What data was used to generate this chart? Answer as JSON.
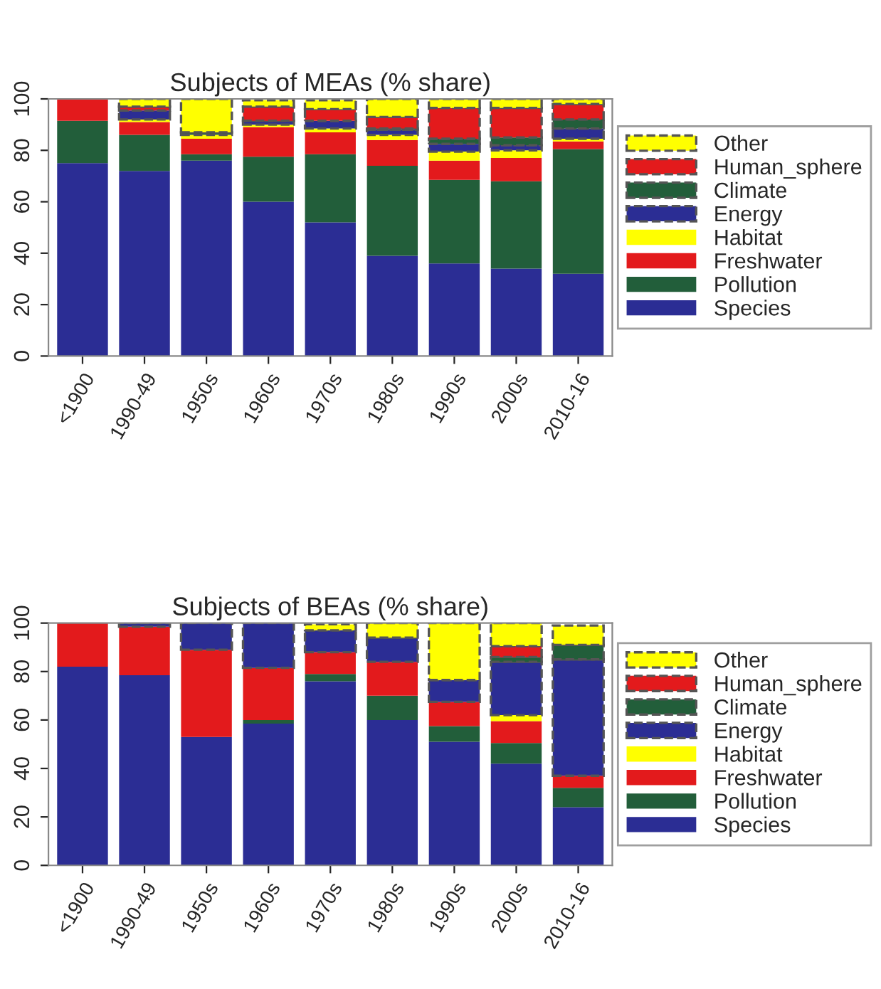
{
  "chart_data": [
    {
      "type": "bar",
      "title": "Subjects of MEAs (% share)",
      "stacked": true,
      "legend": "right",
      "grid": false,
      "categories": [
        "<1900",
        "1990-49",
        "1950s",
        "1960s",
        "1970s",
        "1980s",
        "1990s",
        "2000s",
        "2010-16"
      ],
      "ylim": [
        0,
        100
      ],
      "yticks": [
        0,
        20,
        40,
        60,
        80,
        100
      ],
      "series": [
        {
          "name": "Species",
          "color": "#2b2d94",
          "values": [
            75,
            72,
            76,
            60,
            52,
            39,
            36,
            34,
            32
          ]
        },
        {
          "name": "Pollution",
          "color": "#225e3a",
          "values": [
            16.5,
            14,
            2.5,
            17.5,
            26.5,
            35,
            32.5,
            34,
            48.5
          ]
        },
        {
          "name": "Freshwater",
          "color": "#e31a1c",
          "values": [
            8.5,
            5,
            6,
            11.5,
            8.5,
            10,
            7.5,
            9,
            3
          ]
        },
        {
          "name": "Habitat",
          "color": "#ffff00",
          "values": [
            0,
            1,
            1.5,
            1,
            1.5,
            2,
            3.5,
            3,
            1
          ]
        },
        {
          "name": "Energy",
          "color": "#2b2d94",
          "line_style": "dashed",
          "values": [
            0,
            3.5,
            0,
            1.5,
            3,
            2,
            3,
            2,
            4
          ]
        },
        {
          "name": "Climate",
          "color": "#225e3a",
          "line_style": "dashed",
          "values": [
            0,
            0,
            1,
            null,
            null,
            0.5,
            2,
            3,
            3.5
          ]
        },
        {
          "name": "Human_sphere",
          "color": "#e31a1c",
          "line_style": "dashed",
          "values": [
            0,
            1.5,
            0,
            5.5,
            4.5,
            4.5,
            12,
            11.5,
            6
          ]
        },
        {
          "name": "Other",
          "color": "#ffff00",
          "line_style": "dashed",
          "values": [
            0,
            3,
            13,
            2.5,
            3.5,
            7,
            3.5,
            3.5,
            2
          ]
        }
      ]
    },
    {
      "type": "bar",
      "title": "Subjects of BEAs (% share)",
      "stacked": true,
      "legend": "right",
      "grid": false,
      "categories": [
        "<1900",
        "1990-49",
        "1950s",
        "1960s",
        "1970s",
        "1980s",
        "1990s",
        "2000s",
        "2010-16"
      ],
      "ylim": [
        0,
        100
      ],
      "yticks": [
        0,
        20,
        40,
        60,
        80,
        100
      ],
      "series": [
        {
          "name": "Species",
          "color": "#2b2d94",
          "values": [
            82,
            78.5,
            53,
            58.5,
            76,
            60,
            51,
            42,
            24
          ]
        },
        {
          "name": "Pollution",
          "color": "#225e3a",
          "values": [
            0,
            0,
            0,
            1.5,
            3,
            10,
            6.5,
            8.5,
            8
          ]
        },
        {
          "name": "Freshwater",
          "color": "#e31a1c",
          "values": [
            18,
            20,
            36,
            21.5,
            9,
            14,
            10,
            9,
            5
          ]
        },
        {
          "name": "Habitat",
          "color": "#ffff00",
          "values": [
            0,
            0,
            0,
            0,
            null,
            0,
            0,
            2.5,
            null
          ]
        },
        {
          "name": "Energy",
          "color": "#2b2d94",
          "line_style": "dashed",
          "values": [
            0,
            1.5,
            11,
            18.5,
            9,
            10,
            9,
            22,
            48
          ]
        },
        {
          "name": "Climate",
          "color": "#225e3a",
          "line_style": "dashed",
          "values": [
            0,
            0,
            0,
            0,
            0,
            0,
            0,
            2,
            6
          ]
        },
        {
          "name": "Human_sphere",
          "color": "#e31a1c",
          "line_style": "dashed",
          "values": [
            0,
            0,
            0,
            0,
            0,
            0,
            0,
            4.5,
            0
          ]
        },
        {
          "name": "Other",
          "color": "#ffff00",
          "line_style": "dashed",
          "values": [
            0,
            0,
            0,
            0,
            2.5,
            6,
            23.5,
            9.5,
            8
          ]
        }
      ]
    }
  ]
}
